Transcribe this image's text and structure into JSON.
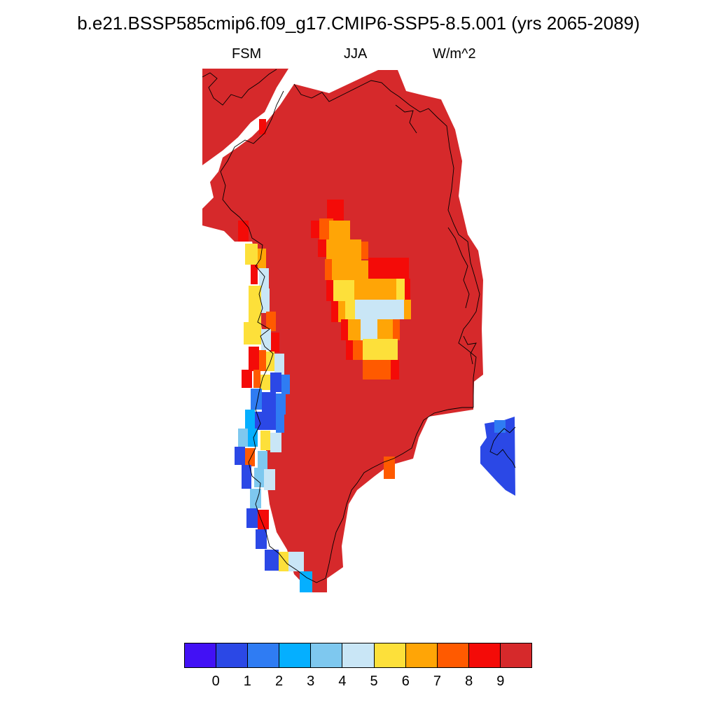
{
  "title": "b.e21.BSSP585cmip6.f09_g17.CMIP6-SSP5-8.5.001 (yrs 2065-2089)",
  "subtitle": {
    "left": "FSM",
    "center": "JJA",
    "right": "W/m^2"
  },
  "colorbar": {
    "colors": [
      "#4211f5",
      "#2b48e6",
      "#2f7cf3",
      "#05afff",
      "#7ec8ef",
      "#c9e6f6",
      "#fde03a",
      "#ffa506",
      "#ff5a00",
      "#f40b08",
      "#d6292b"
    ],
    "labels": [
      "0",
      "1",
      "2",
      "3",
      "4",
      "5",
      "6",
      "7",
      "8",
      "9"
    ]
  },
  "map_colors": {
    "land_value": "#d6292b",
    "red": "#f40b08",
    "orange_red": "#ff5a00",
    "orange": "#ffa506",
    "yellow": "#fde03a",
    "pale_blue": "#c9e6f6",
    "light_blue": "#7ec8ef",
    "cyan": "#05afff",
    "blue": "#2f7cf3",
    "dark_blue": "#2b48e6",
    "coastline": "#000000"
  }
}
